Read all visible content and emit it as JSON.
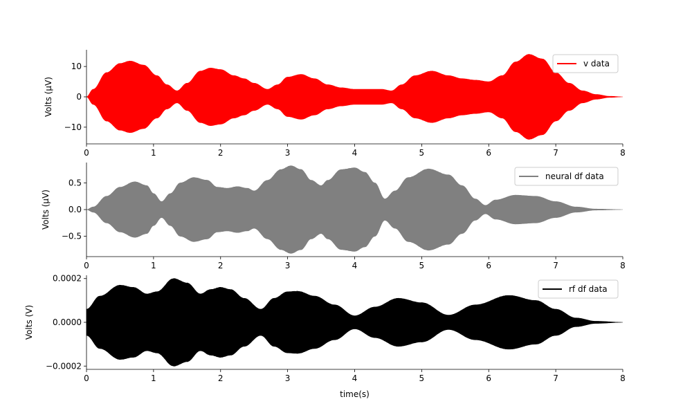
{
  "chart_data": [
    {
      "type": "area",
      "ylabel": "Volts (μV)",
      "xlabel": "",
      "xlim": [
        0,
        8
      ],
      "ylim": [
        -15.5,
        15.5
      ],
      "xticks": [
        0,
        1,
        2,
        3,
        4,
        5,
        6,
        7,
        8
      ],
      "xtick_labels": [
        "0",
        "1",
        "2",
        "3",
        "4",
        "5",
        "6",
        "7",
        "8"
      ],
      "yticks": [
        -10,
        0,
        10
      ],
      "ytick_labels": [
        "−10",
        "0",
        "10"
      ],
      "legend_position": "top-right",
      "series": [
        {
          "name": "v data",
          "color": "#ff0000",
          "symmetric_envelope": true,
          "x": [
            0,
            0.1,
            0.3,
            0.5,
            0.65,
            0.85,
            1.05,
            1.2,
            1.35,
            1.5,
            1.7,
            1.85,
            2.0,
            2.2,
            2.35,
            2.5,
            2.7,
            2.85,
            3.0,
            3.2,
            3.4,
            3.6,
            3.8,
            4.0,
            4.2,
            4.4,
            4.55,
            4.7,
            4.9,
            5.15,
            5.4,
            5.6,
            5.8,
            6.0,
            6.2,
            6.4,
            6.6,
            6.8,
            7.0,
            7.2,
            7.4,
            7.6,
            7.8,
            8.0
          ],
          "envelope": [
            0,
            2.5,
            8,
            11,
            11.8,
            10.5,
            7,
            4,
            2,
            4.5,
            8.5,
            9.5,
            9,
            7,
            6,
            4.5,
            2.5,
            4,
            6.5,
            7.4,
            6,
            4,
            3,
            2.5,
            2.5,
            2.5,
            2,
            4,
            7,
            8.5,
            7,
            6,
            5.5,
            5,
            7,
            11.5,
            14,
            12.5,
            8,
            4.5,
            2,
            0.8,
            0.2,
            0
          ]
        }
      ]
    },
    {
      "type": "area",
      "ylabel": "Volts (μV)",
      "xlabel": "",
      "xlim": [
        0,
        8
      ],
      "ylim": [
        -0.88,
        0.88
      ],
      "xticks": [
        0,
        1,
        2,
        3,
        4,
        5,
        6,
        7,
        8
      ],
      "xtick_labels": [
        "0",
        "1",
        "2",
        "3",
        "4",
        "5",
        "6",
        "7",
        "8"
      ],
      "yticks": [
        -0.5,
        0,
        0.5
      ],
      "ytick_labels": [
        "−0.5",
        "0.0",
        "0.5"
      ],
      "legend_position": "top-right",
      "series": [
        {
          "name": "neural df data",
          "color": "#808080",
          "symmetric_envelope": true,
          "x": [
            0,
            0.1,
            0.3,
            0.5,
            0.72,
            0.9,
            1.0,
            1.12,
            1.25,
            1.4,
            1.6,
            1.8,
            1.95,
            2.1,
            2.25,
            2.4,
            2.5,
            2.7,
            2.9,
            3.05,
            3.2,
            3.35,
            3.5,
            3.6,
            3.8,
            4.0,
            4.15,
            4.3,
            4.45,
            4.6,
            4.8,
            5.1,
            5.4,
            5.6,
            5.8,
            5.95,
            6.1,
            6.4,
            6.7,
            7.0,
            7.3,
            7.6,
            8.0
          ],
          "envelope": [
            0,
            0.05,
            0.25,
            0.42,
            0.52,
            0.45,
            0.3,
            0.15,
            0.3,
            0.5,
            0.6,
            0.55,
            0.42,
            0.4,
            0.43,
            0.4,
            0.35,
            0.55,
            0.75,
            0.82,
            0.75,
            0.55,
            0.45,
            0.55,
            0.75,
            0.78,
            0.7,
            0.5,
            0.2,
            0.35,
            0.6,
            0.76,
            0.65,
            0.45,
            0.2,
            0.08,
            0.18,
            0.27,
            0.25,
            0.15,
            0.05,
            0.01,
            0
          ]
        }
      ]
    },
    {
      "type": "area",
      "ylabel": "Volts (V)",
      "xlabel": "time(s)",
      "xlim": [
        0,
        8
      ],
      "ylim": [
        -0.000215,
        0.000215
      ],
      "xticks": [
        0,
        1,
        2,
        3,
        4,
        5,
        6,
        7,
        8
      ],
      "xtick_labels": [
        "0",
        "1",
        "2",
        "3",
        "4",
        "5",
        "6",
        "7",
        "8"
      ],
      "yticks": [
        -0.0002,
        0,
        0.0002
      ],
      "ytick_labels": [
        "−0.0002",
        "0.0000",
        "0.0002"
      ],
      "legend_position": "top-right",
      "series": [
        {
          "name": "rf df data",
          "color": "#000000",
          "symmetric_envelope": true,
          "x": [
            0,
            0.2,
            0.5,
            0.7,
            0.9,
            1.05,
            1.3,
            1.5,
            1.7,
            1.85,
            2.0,
            2.15,
            2.35,
            2.6,
            2.8,
            3.0,
            3.15,
            3.4,
            3.7,
            4.0,
            4.3,
            4.65,
            5.0,
            5.4,
            5.8,
            6.3,
            6.7,
            7.0,
            7.3,
            7.6,
            8.0
          ],
          "envelope": [
            6e-05,
            0.00012,
            0.00017,
            0.00016,
            0.00013,
            0.00014,
            0.0002,
            0.00018,
            0.00013,
            0.00015,
            0.00016,
            0.00015,
            0.00011,
            6e-05,
            0.00011,
            0.00014,
            0.000142,
            0.00012,
            8e-05,
            3e-05,
            7e-05,
            0.00011,
            9e-05,
            3.3e-05,
            8e-05,
            0.000123,
            0.0001,
            6e-05,
            2e-05,
            5e-06,
            0
          ]
        }
      ]
    }
  ]
}
